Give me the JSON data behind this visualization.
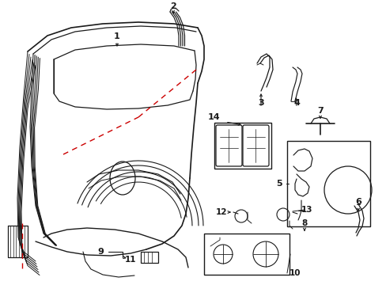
{
  "background": "#ffffff",
  "line_color": "#1a1a1a",
  "red_color": "#cc0000",
  "figsize": [
    4.89,
    3.6
  ],
  "dpi": 100
}
